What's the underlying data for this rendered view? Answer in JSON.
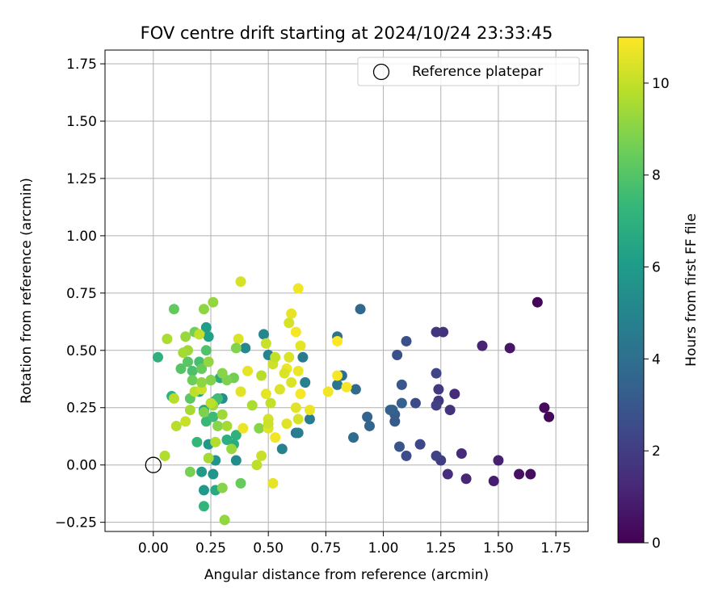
{
  "chart_data": {
    "type": "scatter",
    "title": "FOV centre drift starting at 2024/10/24 23:33:45",
    "xlabel": "Angular distance from reference (arcmin)",
    "ylabel": "Rotation from reference (arcmin)",
    "xlim": [
      -0.21,
      1.89
    ],
    "ylim": [
      -0.29,
      1.81
    ],
    "xticks": [
      0.0,
      0.25,
      0.5,
      0.75,
      1.0,
      1.25,
      1.5,
      1.75
    ],
    "xtick_labels": [
      "0.00",
      "0.25",
      "0.50",
      "0.75",
      "1.00",
      "1.25",
      "1.50",
      "1.75"
    ],
    "yticks": [
      -0.25,
      0.0,
      0.25,
      0.5,
      0.75,
      1.0,
      1.25,
      1.5,
      1.75
    ],
    "ytick_labels": [
      "−0.25",
      "0.00",
      "0.25",
      "0.50",
      "0.75",
      "1.00",
      "1.25",
      "1.50",
      "1.75"
    ],
    "grid": true,
    "legend": {
      "position": "upper-right",
      "entries": [
        {
          "label": "Reference platepar",
          "marker": "open-circle",
          "color": "#000000"
        }
      ]
    },
    "reference": {
      "x": 0.0,
      "y": 0.0
    },
    "colorbar": {
      "label": "Hours from first FF file",
      "range": [
        0,
        11
      ],
      "ticks": [
        0,
        2,
        4,
        6,
        8,
        10
      ],
      "tick_labels": [
        "0",
        "2",
        "4",
        "6",
        "8",
        "10"
      ],
      "colormap": "viridis",
      "stops": [
        "#440154",
        "#482878",
        "#3e4989",
        "#31688e",
        "#26828e",
        "#1f9e89",
        "#35b779",
        "#6ece58",
        "#b5de2b",
        "#fde725"
      ]
    },
    "series": [
      {
        "color_by": "hours",
        "points": [
          [
            1.67,
            0.71,
            0.1
          ],
          [
            1.72,
            0.21,
            0.2
          ],
          [
            1.7,
            0.25,
            0.3
          ],
          [
            1.64,
            -0.04,
            0.4
          ],
          [
            1.59,
            -0.04,
            0.5
          ],
          [
            1.55,
            0.51,
            0.7
          ],
          [
            1.48,
            -0.07,
            0.9
          ],
          [
            1.5,
            0.02,
            1.0
          ],
          [
            1.43,
            0.52,
            1.1
          ],
          [
            1.36,
            -0.06,
            1.2
          ],
          [
            1.34,
            0.05,
            1.3
          ],
          [
            1.31,
            0.31,
            1.4
          ],
          [
            1.28,
            -0.04,
            1.5
          ],
          [
            1.29,
            0.24,
            1.6
          ],
          [
            1.26,
            0.58,
            1.6
          ],
          [
            1.23,
            0.58,
            1.7
          ],
          [
            1.24,
            0.28,
            1.8
          ],
          [
            1.24,
            0.33,
            1.9
          ],
          [
            1.25,
            0.02,
            2.0
          ],
          [
            1.23,
            0.26,
            2.1
          ],
          [
            1.23,
            0.04,
            2.2
          ],
          [
            1.23,
            0.4,
            2.3
          ],
          [
            1.16,
            0.09,
            2.4
          ],
          [
            1.14,
            0.27,
            2.5
          ],
          [
            1.1,
            0.04,
            2.6
          ],
          [
            1.1,
            0.54,
            2.7
          ],
          [
            1.06,
            0.48,
            2.8
          ],
          [
            1.07,
            0.08,
            2.9
          ],
          [
            1.08,
            0.35,
            3.0
          ],
          [
            1.05,
            0.19,
            3.1
          ],
          [
            1.05,
            0.22,
            3.2
          ],
          [
            1.04,
            0.24,
            3.3
          ],
          [
            1.03,
            0.24,
            3.4
          ],
          [
            1.08,
            0.27,
            3.4
          ],
          [
            0.93,
            0.21,
            3.5
          ],
          [
            0.94,
            0.17,
            3.6
          ],
          [
            0.9,
            0.68,
            3.7
          ],
          [
            0.88,
            0.33,
            3.8
          ],
          [
            0.87,
            0.12,
            3.9
          ],
          [
            0.82,
            0.39,
            4.0
          ],
          [
            0.8,
            0.56,
            4.2
          ],
          [
            0.8,
            0.35,
            4.3
          ],
          [
            0.62,
            0.14,
            4.4
          ],
          [
            0.65,
            0.47,
            4.5
          ],
          [
            0.68,
            0.2,
            4.6
          ],
          [
            0.63,
            0.14,
            4.7
          ],
          [
            0.66,
            0.36,
            4.8
          ],
          [
            0.56,
            0.07,
            4.9
          ],
          [
            0.5,
            0.48,
            5.0
          ],
          [
            0.48,
            0.57,
            5.1
          ],
          [
            0.4,
            0.51,
            5.2
          ],
          [
            0.36,
            0.02,
            5.3
          ],
          [
            0.3,
            0.29,
            5.4
          ],
          [
            0.27,
            0.28,
            5.5
          ],
          [
            0.27,
            0.02,
            5.6
          ],
          [
            0.26,
            -0.04,
            5.7
          ],
          [
            0.24,
            0.09,
            5.8
          ],
          [
            0.22,
            -0.11,
            5.9
          ],
          [
            0.21,
            -0.03,
            6.0
          ],
          [
            0.23,
            0.6,
            6.1
          ],
          [
            0.24,
            0.56,
            6.2
          ],
          [
            0.25,
            0.37,
            6.3
          ],
          [
            0.2,
            0.32,
            6.4
          ],
          [
            0.22,
            0.24,
            6.5
          ],
          [
            0.27,
            -0.11,
            6.6
          ],
          [
            0.29,
            0.38,
            6.7
          ],
          [
            0.35,
            0.09,
            6.8
          ],
          [
            0.32,
            0.11,
            6.9
          ],
          [
            0.36,
            0.13,
            7.0
          ],
          [
            0.02,
            0.47,
            7.0
          ],
          [
            0.08,
            0.3,
            7.1
          ],
          [
            0.22,
            -0.18,
            7.2
          ],
          [
            0.19,
            0.1,
            7.3
          ],
          [
            0.23,
            0.19,
            7.4
          ],
          [
            0.26,
            0.21,
            7.5
          ],
          [
            0.28,
            0.29,
            7.6
          ],
          [
            0.2,
            0.45,
            7.7
          ],
          [
            0.17,
            0.41,
            7.8
          ],
          [
            0.23,
            0.5,
            7.9
          ],
          [
            0.12,
            0.42,
            8.0
          ],
          [
            0.15,
            0.45,
            8.1
          ],
          [
            0.16,
            0.29,
            8.2
          ],
          [
            0.09,
            0.68,
            8.3
          ],
          [
            0.21,
            0.42,
            8.4
          ],
          [
            0.17,
            0.37,
            8.5
          ],
          [
            0.18,
            0.58,
            8.6
          ],
          [
            0.16,
            -0.03,
            8.7
          ],
          [
            0.22,
            0.23,
            8.8
          ],
          [
            0.25,
            0.37,
            8.9
          ],
          [
            0.3,
            -0.1,
            9.0
          ],
          [
            0.28,
            0.17,
            9.0
          ],
          [
            0.22,
            0.68,
            9.1
          ],
          [
            0.26,
            0.71,
            9.2
          ],
          [
            0.14,
            0.56,
            9.3
          ],
          [
            0.15,
            0.5,
            9.4
          ],
          [
            0.13,
            0.49,
            9.5
          ],
          [
            0.32,
            0.17,
            9.5
          ],
          [
            0.06,
            0.55,
            9.6
          ],
          [
            0.05,
            0.04,
            9.7
          ],
          [
            0.1,
            0.17,
            9.8
          ],
          [
            0.09,
            0.29,
            9.8
          ],
          [
            0.18,
            0.32,
            9.9
          ],
          [
            0.2,
            0.57,
            10.0
          ],
          [
            0.14,
            0.19,
            10.1
          ],
          [
            0.21,
            0.33,
            10.2
          ],
          [
            0.38,
            0.8,
            10.3
          ],
          [
            0.37,
            0.55,
            10.4
          ],
          [
            0.38,
            0.32,
            10.5
          ],
          [
            0.41,
            0.41,
            10.6
          ],
          [
            0.39,
            0.16,
            10.7
          ]
        ]
      },
      {
        "color_by": "hours",
        "points": [
          [
            0.31,
            -0.24,
            9.2
          ],
          [
            0.35,
            0.38,
            8.6
          ],
          [
            0.43,
            0.26,
            9.6
          ],
          [
            0.46,
            0.16,
            9.0
          ],
          [
            0.38,
            -0.08,
            8.4
          ],
          [
            0.32,
            0.37,
            8.8
          ],
          [
            0.3,
            0.4,
            9.0
          ],
          [
            0.26,
            0.26,
            9.4
          ],
          [
            0.34,
            0.07,
            9.3
          ],
          [
            0.36,
            0.51,
            8.9
          ],
          [
            0.24,
            0.03,
            9.5
          ],
          [
            0.27,
            0.1,
            9.7
          ],
          [
            0.21,
            0.36,
            9.1
          ],
          [
            0.24,
            0.45,
            9.2
          ],
          [
            0.45,
            0.0,
            9.9
          ],
          [
            0.47,
            0.39,
            9.8
          ],
          [
            0.51,
            0.27,
            10.0
          ],
          [
            0.49,
            0.53,
            10.1
          ],
          [
            0.52,
            0.44,
            10.2
          ],
          [
            0.55,
            0.33,
            10.4
          ],
          [
            0.5,
            0.2,
            10.3
          ],
          [
            0.5,
            0.16,
            10.5
          ],
          [
            0.49,
            0.31,
            10.6
          ],
          [
            0.53,
            0.12,
            10.8
          ],
          [
            0.58,
            0.18,
            10.5
          ],
          [
            0.58,
            0.42,
            10.7
          ],
          [
            0.59,
            0.47,
            10.4
          ],
          [
            0.6,
            0.66,
            10.6
          ],
          [
            0.59,
            0.62,
            10.3
          ],
          [
            0.62,
            0.58,
            10.9
          ],
          [
            0.63,
            0.77,
            10.8
          ],
          [
            0.62,
            0.25,
            10.5
          ],
          [
            0.63,
            0.41,
            10.7
          ],
          [
            0.64,
            0.52,
            10.6
          ],
          [
            0.6,
            0.36,
            10.4
          ],
          [
            0.64,
            0.31,
            10.9
          ],
          [
            0.63,
            0.2,
            10.3
          ],
          [
            0.68,
            0.24,
            10.7
          ],
          [
            0.76,
            0.32,
            10.8
          ],
          [
            0.8,
            0.39,
            10.9
          ],
          [
            0.84,
            0.34,
            10.9
          ],
          [
            0.8,
            0.54,
            11.0
          ],
          [
            0.52,
            -0.08,
            10.6
          ],
          [
            0.53,
            0.47,
            10.0
          ],
          [
            0.57,
            0.4,
            10.4
          ],
          [
            0.47,
            0.04,
            10.1
          ],
          [
            0.5,
            0.18,
            10.2
          ],
          [
            0.3,
            0.22,
            9.4
          ],
          [
            0.25,
            0.27,
            9.9
          ],
          [
            0.16,
            0.24,
            9.5
          ]
        ]
      }
    ]
  }
}
